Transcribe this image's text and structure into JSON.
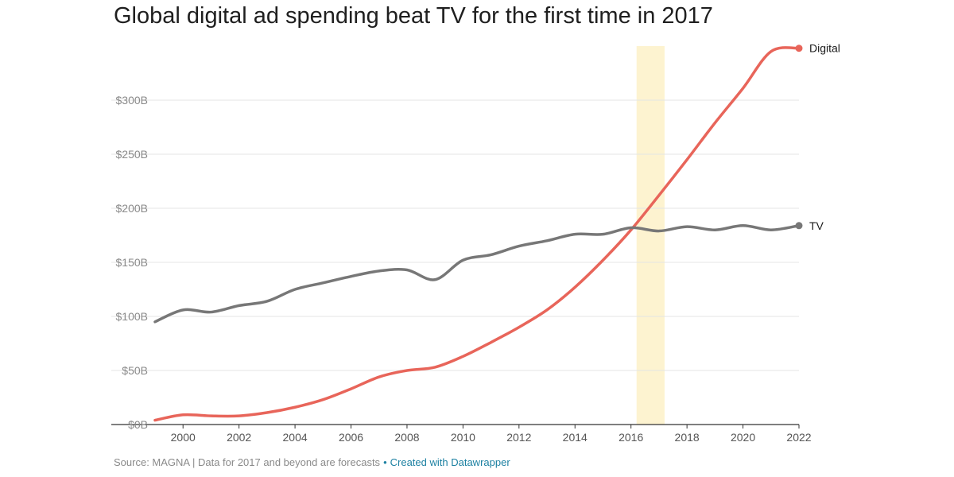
{
  "chart_data": {
    "type": "line",
    "title": "Global digital ad spending beat TV for the first time in 2017",
    "xlabel": "",
    "ylabel": "",
    "xlim": [
      1999,
      2022
    ],
    "ylim": [
      0,
      350
    ],
    "x_ticks": [
      2000,
      2002,
      2004,
      2006,
      2008,
      2010,
      2012,
      2014,
      2016,
      2018,
      2020,
      2022
    ],
    "y_ticks": [
      {
        "value": 0,
        "label": "$0B"
      },
      {
        "value": 50,
        "label": "$50B"
      },
      {
        "value": 100,
        "label": "$100B"
      },
      {
        "value": 150,
        "label": "$150B"
      },
      {
        "value": 200,
        "label": "$200B"
      },
      {
        "value": 250,
        "label": "$250B"
      },
      {
        "value": 300,
        "label": "$300B"
      }
    ],
    "grid": true,
    "highlight_band": {
      "x_start": 2016.2,
      "x_end": 2017.2,
      "color": "#fdf3d0"
    },
    "x": [
      1999,
      2000,
      2001,
      2002,
      2003,
      2004,
      2005,
      2006,
      2007,
      2008,
      2009,
      2010,
      2011,
      2012,
      2013,
      2014,
      2015,
      2016,
      2017,
      2018,
      2019,
      2020,
      2021,
      2022
    ],
    "series": [
      {
        "name": "Digital",
        "color": "#e8655a",
        "values": [
          4,
          9,
          8,
          8,
          11,
          16,
          23,
          33,
          44,
          50,
          53,
          63,
          76,
          90,
          106,
          127,
          152,
          180,
          212,
          245,
          279,
          311,
          345,
          348
        ]
      },
      {
        "name": "TV",
        "color": "#777777",
        "values": [
          95,
          106,
          104,
          110,
          114,
          125,
          131,
          137,
          142,
          143,
          134,
          152,
          157,
          165,
          170,
          176,
          176,
          182,
          179,
          183,
          180,
          184,
          180,
          184
        ]
      }
    ]
  },
  "footer": {
    "source": "Source: MAGNA | Data for 2017 and beyond are forecasts",
    "separator": "•",
    "credit": "Created with Datawrapper"
  }
}
